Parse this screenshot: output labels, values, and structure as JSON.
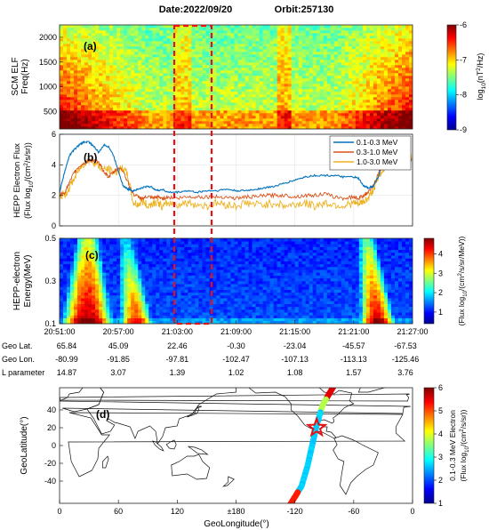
{
  "header": {
    "date": "Date:2022/09/20",
    "orbit": "Orbit:257130"
  },
  "chart_data": [
    {
      "id": "a",
      "type": "heatmap",
      "panel_label": "(a)",
      "ylabel_lines": [
        "SCM ELF",
        "Freq(Hz)"
      ],
      "yticks": [
        500,
        1000,
        1500,
        2000
      ],
      "ylim": [
        150,
        2250
      ],
      "colorbar": {
        "ticks": [
          -6,
          -7,
          -8,
          -9
        ],
        "range": [
          -9,
          -6
        ],
        "label": "log10(nT²/Hz)",
        "label_parts": {
          "base": "log",
          "sub": "10",
          "rest": "(nT",
          "sup": "2",
          "tail": "/Hz)"
        }
      }
    },
    {
      "id": "b",
      "type": "line",
      "panel_label": "(b)",
      "ylabel_lines": [
        "HEPP Electron Flux",
        "(Flux log10/(cm²/s/sr))"
      ],
      "ylabel_parts": {
        "pre": "(Flux log",
        "sub": "10",
        "mid": "/(cm",
        "sup": "2",
        "post": "/s/sr))"
      },
      "yticks": [
        0,
        2,
        4,
        6
      ],
      "ylim": [
        0,
        6
      ],
      "xlim": [
        0,
        36
      ],
      "legend_position": "top-right",
      "series": [
        {
          "name": "0.1-0.3 MeV",
          "color": "#0072BD",
          "x": [
            0,
            0.5,
            1,
            1.5,
            2,
            2.5,
            3,
            3.5,
            4,
            4.5,
            5,
            5.5,
            6,
            6.5,
            7,
            7.5,
            8,
            8.5,
            9,
            9.5,
            10,
            10.5,
            11,
            12,
            13,
            14,
            15,
            16,
            17,
            18,
            19,
            20,
            21,
            22,
            23,
            24,
            25,
            26,
            27,
            28,
            29,
            30,
            30.5,
            31,
            31.5,
            32,
            32.5,
            33,
            33.5,
            34,
            34.5,
            35,
            36
          ],
          "y": [
            2.2,
            3.5,
            4.6,
            5.0,
            5.3,
            5.5,
            5.5,
            5.2,
            4.8,
            5.3,
            5.2,
            4.6,
            3.6,
            2.6,
            2.4,
            2.3,
            2.4,
            2.5,
            2.6,
            2.5,
            2.3,
            2.4,
            2.2,
            2.2,
            2.3,
            2.2,
            2.3,
            2.3,
            2.4,
            2.3,
            2.3,
            2.4,
            2.5,
            2.6,
            2.8,
            3.0,
            3.2,
            3.3,
            3.3,
            3.3,
            3.2,
            3.2,
            3.1,
            2.6,
            2.5,
            2.6,
            3.2,
            4.2,
            4.8,
            4.9,
            5.0,
            4.4,
            4.2
          ]
        },
        {
          "name": "0.3-1.0 MeV",
          "color": "#D95319",
          "x": [
            0,
            0.5,
            1,
            1.5,
            2,
            2.5,
            3,
            3.5,
            4,
            4.5,
            5,
            5.5,
            6,
            6.5,
            7,
            7.5,
            8,
            8.5,
            9,
            9.5,
            10,
            10.5,
            11,
            12,
            13,
            14,
            15,
            16,
            17,
            18,
            19,
            20,
            21,
            22,
            23,
            24,
            25,
            26,
            27,
            28,
            29,
            30,
            30.5,
            31,
            31.5,
            32,
            32.5,
            33,
            33.5,
            34,
            34.5,
            35,
            36
          ],
          "y": [
            2.0,
            2.2,
            2.8,
            3.5,
            3.9,
            4.1,
            4.3,
            4.3,
            4.1,
            3.6,
            3.2,
            3.5,
            3.8,
            3.6,
            2.8,
            2.1,
            1.9,
            1.8,
            1.9,
            1.8,
            1.9,
            1.8,
            1.9,
            1.8,
            1.9,
            1.9,
            1.9,
            1.9,
            1.9,
            1.8,
            1.9,
            1.9,
            2.0,
            2.0,
            2.0,
            1.9,
            2.0,
            2.0,
            2.1,
            1.9,
            1.8,
            1.9,
            1.8,
            2.0,
            2.2,
            2.6,
            3.4,
            4.1,
            4.4,
            4.4,
            4.3,
            4.1,
            4.3
          ]
        },
        {
          "name": "1.0-3.0 MeV",
          "color": "#EDB120",
          "x": [
            0,
            0.5,
            1,
            1.5,
            2,
            2.5,
            3,
            3.5,
            4,
            4.5,
            5,
            5.5,
            6,
            6.5,
            7,
            7.5,
            8,
            8.5,
            9,
            9.5,
            10,
            10.5,
            11,
            12,
            13,
            14,
            15,
            16,
            17,
            18,
            19,
            20,
            21,
            22,
            23,
            24,
            25,
            26,
            27,
            28,
            29,
            30,
            30.5,
            31,
            31.5,
            32,
            32.5,
            33,
            33.5,
            34,
            34.5,
            35,
            36
          ],
          "y": [
            2.0,
            2.0,
            2.5,
            3.1,
            3.7,
            4.1,
            4.3,
            4.2,
            3.9,
            3.7,
            3.7,
            3.5,
            3.6,
            3.8,
            3.2,
            1.5,
            1.4,
            1.6,
            1.3,
            1.5,
            1.6,
            1.2,
            1.5,
            1.4,
            1.5,
            1.4,
            1.3,
            1.5,
            1.4,
            1.3,
            1.5,
            1.4,
            1.4,
            1.5,
            1.3,
            1.4,
            1.5,
            1.3,
            1.5,
            1.4,
            1.3,
            1.5,
            1.4,
            1.6,
            1.8,
            2.4,
            3.1,
            3.7,
            4.2,
            4.4,
            4.5,
            4.6,
            4.6
          ]
        }
      ]
    },
    {
      "id": "c",
      "type": "heatmap",
      "panel_label": "(c)",
      "ylabel_lines": [
        "HEPP-electron",
        "Energy(MeV)"
      ],
      "yticks": [
        0.1,
        0.3,
        0.5
      ],
      "ylim": [
        0.1,
        0.5
      ],
      "xtick_labels": [
        "20:51:00",
        "20:57:00",
        "21:03:00",
        "21:09:00",
        "21:15:00",
        "21:21:00",
        "21:27:00"
      ],
      "colorbar": {
        "ticks": [
          1,
          2,
          3,
          4
        ],
        "range": [
          0.4,
          4.8
        ],
        "label": "(Flux log10/(cm²/s/sr/MeV))",
        "label_parts": {
          "pre": "(Flux log",
          "sub": "10",
          "mid": "/(cm",
          "sup": "2",
          "post": "/s/sr/MeV))"
        }
      }
    },
    {
      "id": "d",
      "type": "scatter",
      "panel_label": "(d)",
      "xlabel": "GeoLongitude(°)",
      "ylabel": "GeoLatitude(°)",
      "xticks": [
        "0",
        "60",
        "120",
        "±180",
        "-120",
        "-60",
        "0"
      ],
      "yticks": [
        40,
        20,
        0,
        -20,
        -40
      ],
      "ylim": [
        -65,
        65
      ],
      "colorbar": {
        "ticks": [
          6,
          5,
          4,
          3,
          2,
          1
        ],
        "range": [
          1,
          6
        ],
        "label_lines": [
          "0.1-0.3 MeV Electron",
          "(Flux log10/(cm²/s/sr))"
        ],
        "label_parts": {
          "line1": "0.1-0.3 MeV Electron",
          "pre": "(Flux log",
          "sub": "10",
          "mid": "/(cm",
          "sup": "2",
          "post": "/s/sr))"
        }
      },
      "track": {
        "lon": [
          -80.99,
          -91.85,
          -97.81,
          -102.47,
          -107.13,
          -113.13,
          -125.46
        ],
        "lat": [
          65.84,
          45.09,
          22.46,
          -0.3,
          -23.04,
          -45.57,
          -67.53
        ]
      },
      "event_marker": {
        "lon": -97.8,
        "lat": 20.0,
        "shape": "star",
        "color": "#e81010"
      }
    }
  ],
  "time_table": {
    "rows": [
      {
        "label": "Geo Lat.",
        "values": [
          "65.84",
          "45.09",
          "22.46",
          "-0.30",
          "-23.04",
          "-45.57",
          "-67.53"
        ]
      },
      {
        "label": "Geo Lon.",
        "values": [
          "-80.99",
          "-91.85",
          "-97.81",
          "-102.47",
          "-107.13",
          "-113.13",
          "-125.46"
        ]
      },
      {
        "label": "L parameter",
        "values": [
          "14.87",
          "3.07",
          "1.39",
          "1.02",
          "1.08",
          "1.57",
          "3.76"
        ]
      }
    ]
  },
  "highlight_box": {
    "color": "#e81010",
    "time_start": "21:01:30",
    "time_end": "21:05:00"
  }
}
